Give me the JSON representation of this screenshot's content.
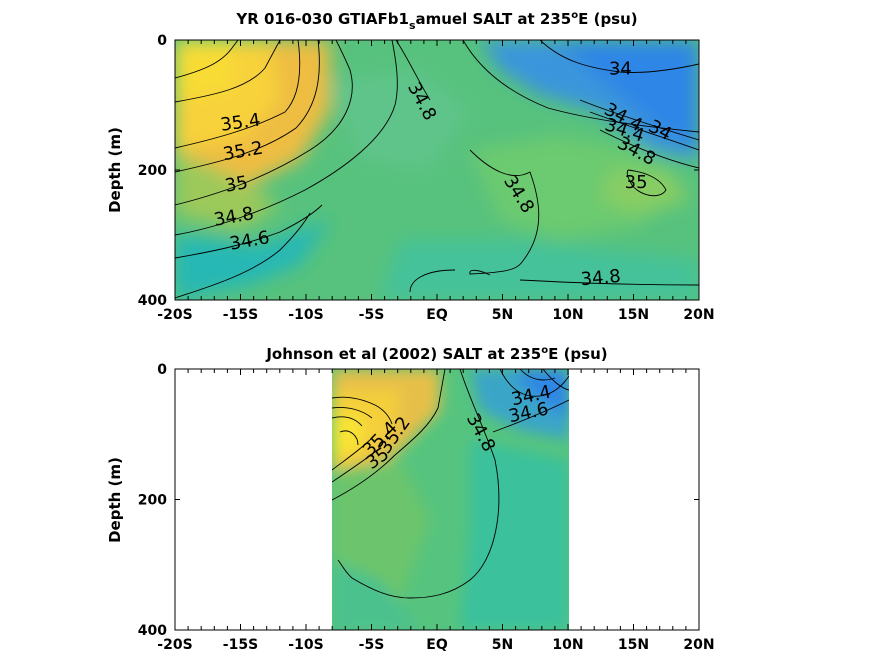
{
  "chart_data": [
    {
      "type": "heatmap",
      "title_main": "YR 016-030 GTIAFb1",
      "title_sub": "s",
      "title_rest": "amuel SALT at 235",
      "title_deg": "o",
      "title_end": "E (psu)",
      "ylabel": "Depth (m)",
      "x_ticks": [
        "-20S",
        "-15S",
        "-10S",
        "-5S",
        "EQ",
        "5N",
        "10N",
        "15N",
        "20N"
      ],
      "x_values": [
        -20,
        -15,
        -10,
        -5,
        0,
        5,
        10,
        15,
        20
      ],
      "y_ticks": [
        "0",
        "200",
        "400"
      ],
      "y_values": [
        0,
        200,
        400
      ],
      "xlim": [
        -20,
        20
      ],
      "ylim": [
        0,
        400
      ],
      "data_xrange": [
        -20,
        20
      ],
      "contour_labels": [
        {
          "text": "34",
          "lat": 14,
          "depth": 45,
          "angle": 0
        },
        {
          "text": "35.4",
          "lat": -15,
          "depth": 128,
          "angle": -8
        },
        {
          "text": "34.8",
          "lat": -1.2,
          "depth": 95,
          "angle": 62
        },
        {
          "text": "34.4",
          "lat": 14.2,
          "depth": 120,
          "angle": 28
        },
        {
          "text": "34.4",
          "lat": 14.3,
          "depth": 140,
          "angle": 18
        },
        {
          "text": "34",
          "lat": 17,
          "depth": 140,
          "angle": 28
        },
        {
          "text": "34.8",
          "lat": 15.2,
          "depth": 172,
          "angle": 28
        },
        {
          "text": "35.2",
          "lat": -14.8,
          "depth": 172,
          "angle": -10
        },
        {
          "text": "35",
          "lat": -15.3,
          "depth": 223,
          "angle": -10
        },
        {
          "text": "35",
          "lat": 15.2,
          "depth": 220,
          "angle": 0
        },
        {
          "text": "34.8",
          "lat": 6.2,
          "depth": 238,
          "angle": 58
        },
        {
          "text": "34.8",
          "lat": -15.5,
          "depth": 273,
          "angle": -10
        },
        {
          "text": "34.6",
          "lat": -14.3,
          "depth": 310,
          "angle": -10
        },
        {
          "text": "34.8",
          "lat": 12.5,
          "depth": 367,
          "angle": -5
        }
      ],
      "colors": {
        "low": "#2f85e6",
        "mid": "#4cc38a",
        "high": "#f8dc35"
      }
    },
    {
      "type": "heatmap",
      "title_main": "Johnson et al (2002) SALT at 235",
      "title_deg": "o",
      "title_end": "E (psu)",
      "ylabel": "Depth (m)",
      "x_ticks": [
        "-20S",
        "-15S",
        "-10S",
        "-5S",
        "EQ",
        "5N",
        "10N",
        "15N",
        "20N"
      ],
      "x_values": [
        -20,
        -15,
        -10,
        -5,
        0,
        5,
        10,
        15,
        20
      ],
      "y_ticks": [
        "0",
        "200",
        "400"
      ],
      "y_values": [
        0,
        200,
        400
      ],
      "xlim": [
        -20,
        20
      ],
      "ylim": [
        0,
        400
      ],
      "data_xrange": [
        -8,
        10
      ],
      "contour_labels": [
        {
          "text": "34.4",
          "lat": 7.2,
          "depth": 42,
          "angle": -12
        },
        {
          "text": "34.6",
          "lat": 7.0,
          "depth": 68,
          "angle": -12
        },
        {
          "text": "35.4",
          "lat": -4.3,
          "depth": 108,
          "angle": -45
        },
        {
          "text": "35.2",
          "lat": -3.2,
          "depth": 102,
          "angle": -55
        },
        {
          "text": "35",
          "lat": -4.5,
          "depth": 138,
          "angle": -35
        },
        {
          "text": "34.8",
          "lat": 3.3,
          "depth": 98,
          "angle": 62
        }
      ],
      "colors": {
        "low": "#2f85e6",
        "mid": "#4cc38a",
        "high": "#f8dc35"
      }
    }
  ]
}
